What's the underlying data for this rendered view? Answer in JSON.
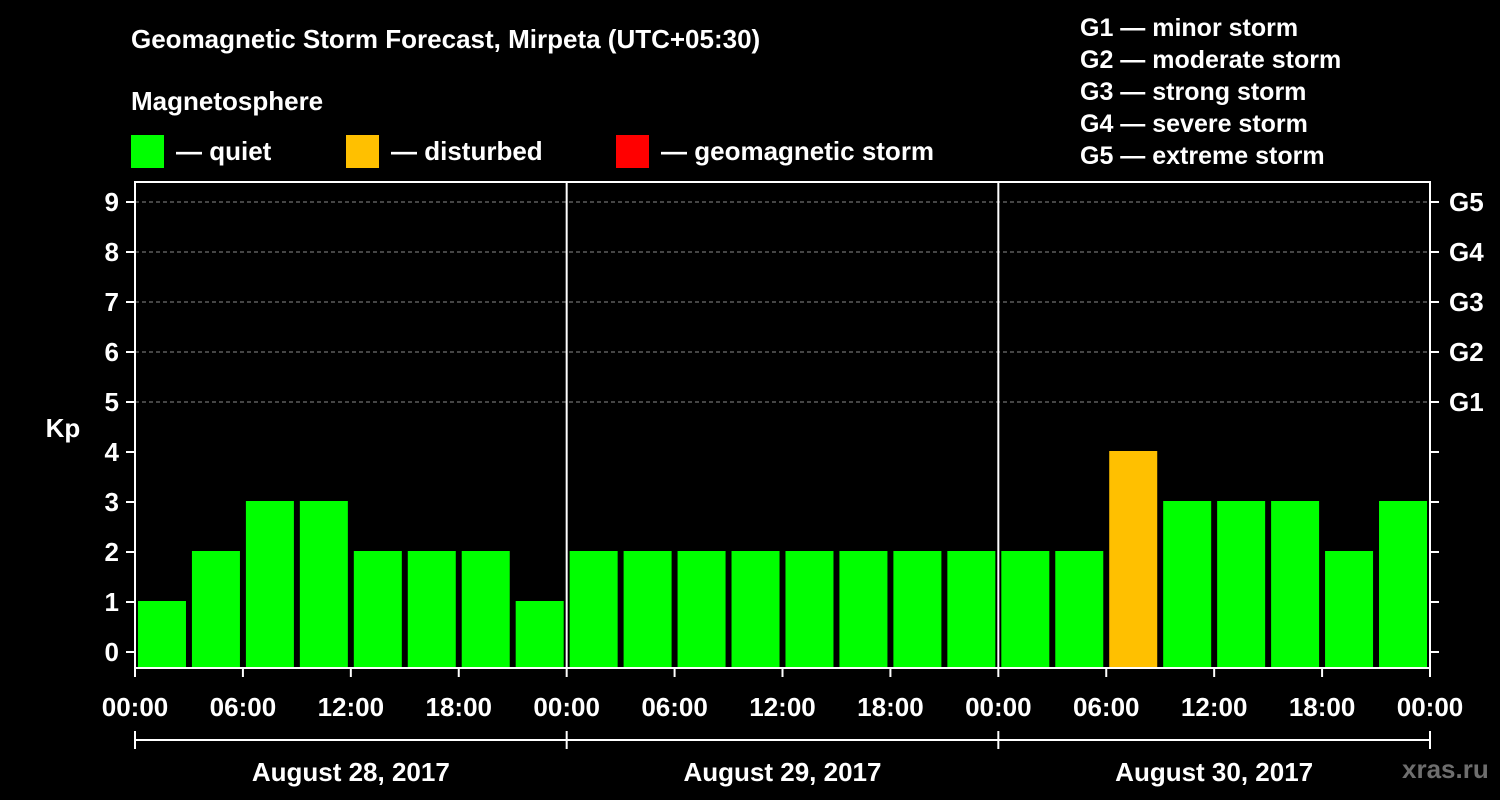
{
  "header": {
    "title": "Geomagnetic Storm Forecast, Mirpeta (UTC+05:30)",
    "subtitle": "Magnetosphere"
  },
  "legend": [
    {
      "label": "— quiet",
      "color": "#00ff00"
    },
    {
      "label": "— disturbed",
      "color": "#ffc000"
    },
    {
      "label": "— geomagnetic storm",
      "color": "#ff0000"
    }
  ],
  "storm_scale": [
    "G1 — minor storm",
    "G2 — moderate storm",
    "G3 — strong storm",
    "G4 — severe storm",
    "G5 — extreme storm"
  ],
  "chart_data": {
    "type": "bar",
    "ylabel": "Kp",
    "ylim": [
      0,
      9
    ],
    "y_ticks": [
      "0",
      "1",
      "2",
      "3",
      "4",
      "5",
      "6",
      "7",
      "8",
      "9"
    ],
    "right_ticks": [
      {
        "kp": 5,
        "label": "G1"
      },
      {
        "kp": 6,
        "label": "G2"
      },
      {
        "kp": 7,
        "label": "G3"
      },
      {
        "kp": 8,
        "label": "G4"
      },
      {
        "kp": 9,
        "label": "G5"
      }
    ],
    "x_tick_labels": [
      "00:00",
      "06:00",
      "12:00",
      "18:00",
      "00:00",
      "06:00",
      "12:00",
      "18:00",
      "00:00",
      "06:00",
      "12:00",
      "18:00",
      "00:00"
    ],
    "days": [
      "August 28, 2017",
      "August 29, 2017",
      "August 30, 2017"
    ],
    "categories": [
      "Aug 28 00:00",
      "Aug 28 03:00",
      "Aug 28 06:00",
      "Aug 28 09:00",
      "Aug 28 12:00",
      "Aug 28 15:00",
      "Aug 28 18:00",
      "Aug 28 21:00",
      "Aug 29 00:00",
      "Aug 29 03:00",
      "Aug 29 06:00",
      "Aug 29 09:00",
      "Aug 29 12:00",
      "Aug 29 15:00",
      "Aug 29 18:00",
      "Aug 29 21:00",
      "Aug 30 00:00",
      "Aug 30 03:00",
      "Aug 30 06:00",
      "Aug 30 09:00",
      "Aug 30 12:00",
      "Aug 30 15:00",
      "Aug 30 18:00",
      "Aug 30 21:00"
    ],
    "values": [
      1,
      2,
      3,
      3,
      2,
      2,
      2,
      1,
      2,
      2,
      2,
      2,
      2,
      2,
      2,
      2,
      2,
      2,
      4,
      3,
      3,
      3,
      2,
      3
    ],
    "status": [
      "quiet",
      "quiet",
      "quiet",
      "quiet",
      "quiet",
      "quiet",
      "quiet",
      "quiet",
      "quiet",
      "quiet",
      "quiet",
      "quiet",
      "quiet",
      "quiet",
      "quiet",
      "quiet",
      "quiet",
      "quiet",
      "disturbed",
      "quiet",
      "quiet",
      "quiet",
      "quiet",
      "quiet"
    ],
    "colors": {
      "quiet": "#00ff00",
      "disturbed": "#ffc000",
      "storm": "#ff0000"
    },
    "hours_offset_first_bar": 1.5
  },
  "watermark": "xras.ru"
}
